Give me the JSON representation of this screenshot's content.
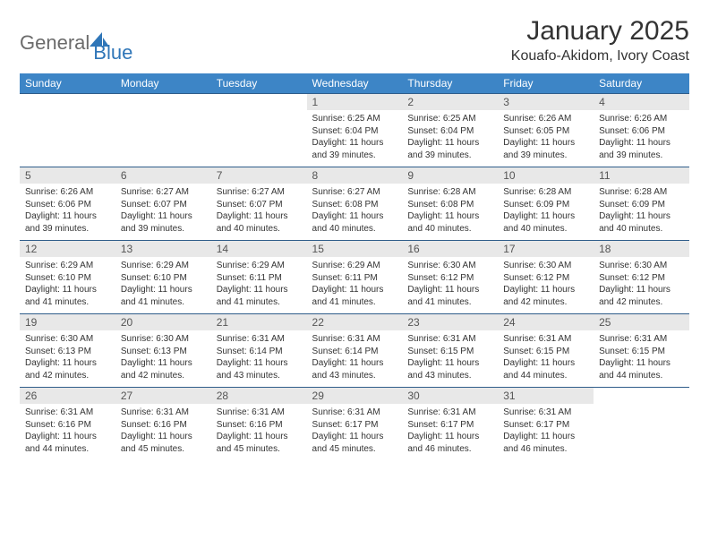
{
  "logo": {
    "word1": "General",
    "word2": "Blue"
  },
  "title": "January 2025",
  "subtitle": "Kouafo-Akidom, Ivory Coast",
  "colors": {
    "header_bg": "#3d85c6",
    "header_text": "#ffffff",
    "daynum_bg": "#e8e8e8",
    "row_border": "#2f5d8a",
    "logo_gray": "#6b6b6b",
    "logo_blue": "#2f76b8",
    "page_bg": "#ffffff",
    "body_text": "#333333"
  },
  "weekdays": [
    "Sunday",
    "Monday",
    "Tuesday",
    "Wednesday",
    "Thursday",
    "Friday",
    "Saturday"
  ],
  "weeks": [
    [
      {
        "n": "",
        "sr": "",
        "ss": "",
        "dl": ""
      },
      {
        "n": "",
        "sr": "",
        "ss": "",
        "dl": ""
      },
      {
        "n": "",
        "sr": "",
        "ss": "",
        "dl": ""
      },
      {
        "n": "1",
        "sr": "Sunrise: 6:25 AM",
        "ss": "Sunset: 6:04 PM",
        "dl": "Daylight: 11 hours and 39 minutes."
      },
      {
        "n": "2",
        "sr": "Sunrise: 6:25 AM",
        "ss": "Sunset: 6:04 PM",
        "dl": "Daylight: 11 hours and 39 minutes."
      },
      {
        "n": "3",
        "sr": "Sunrise: 6:26 AM",
        "ss": "Sunset: 6:05 PM",
        "dl": "Daylight: 11 hours and 39 minutes."
      },
      {
        "n": "4",
        "sr": "Sunrise: 6:26 AM",
        "ss": "Sunset: 6:06 PM",
        "dl": "Daylight: 11 hours and 39 minutes."
      }
    ],
    [
      {
        "n": "5",
        "sr": "Sunrise: 6:26 AM",
        "ss": "Sunset: 6:06 PM",
        "dl": "Daylight: 11 hours and 39 minutes."
      },
      {
        "n": "6",
        "sr": "Sunrise: 6:27 AM",
        "ss": "Sunset: 6:07 PM",
        "dl": "Daylight: 11 hours and 39 minutes."
      },
      {
        "n": "7",
        "sr": "Sunrise: 6:27 AM",
        "ss": "Sunset: 6:07 PM",
        "dl": "Daylight: 11 hours and 40 minutes."
      },
      {
        "n": "8",
        "sr": "Sunrise: 6:27 AM",
        "ss": "Sunset: 6:08 PM",
        "dl": "Daylight: 11 hours and 40 minutes."
      },
      {
        "n": "9",
        "sr": "Sunrise: 6:28 AM",
        "ss": "Sunset: 6:08 PM",
        "dl": "Daylight: 11 hours and 40 minutes."
      },
      {
        "n": "10",
        "sr": "Sunrise: 6:28 AM",
        "ss": "Sunset: 6:09 PM",
        "dl": "Daylight: 11 hours and 40 minutes."
      },
      {
        "n": "11",
        "sr": "Sunrise: 6:28 AM",
        "ss": "Sunset: 6:09 PM",
        "dl": "Daylight: 11 hours and 40 minutes."
      }
    ],
    [
      {
        "n": "12",
        "sr": "Sunrise: 6:29 AM",
        "ss": "Sunset: 6:10 PM",
        "dl": "Daylight: 11 hours and 41 minutes."
      },
      {
        "n": "13",
        "sr": "Sunrise: 6:29 AM",
        "ss": "Sunset: 6:10 PM",
        "dl": "Daylight: 11 hours and 41 minutes."
      },
      {
        "n": "14",
        "sr": "Sunrise: 6:29 AM",
        "ss": "Sunset: 6:11 PM",
        "dl": "Daylight: 11 hours and 41 minutes."
      },
      {
        "n": "15",
        "sr": "Sunrise: 6:29 AM",
        "ss": "Sunset: 6:11 PM",
        "dl": "Daylight: 11 hours and 41 minutes."
      },
      {
        "n": "16",
        "sr": "Sunrise: 6:30 AM",
        "ss": "Sunset: 6:12 PM",
        "dl": "Daylight: 11 hours and 41 minutes."
      },
      {
        "n": "17",
        "sr": "Sunrise: 6:30 AM",
        "ss": "Sunset: 6:12 PM",
        "dl": "Daylight: 11 hours and 42 minutes."
      },
      {
        "n": "18",
        "sr": "Sunrise: 6:30 AM",
        "ss": "Sunset: 6:12 PM",
        "dl": "Daylight: 11 hours and 42 minutes."
      }
    ],
    [
      {
        "n": "19",
        "sr": "Sunrise: 6:30 AM",
        "ss": "Sunset: 6:13 PM",
        "dl": "Daylight: 11 hours and 42 minutes."
      },
      {
        "n": "20",
        "sr": "Sunrise: 6:30 AM",
        "ss": "Sunset: 6:13 PM",
        "dl": "Daylight: 11 hours and 42 minutes."
      },
      {
        "n": "21",
        "sr": "Sunrise: 6:31 AM",
        "ss": "Sunset: 6:14 PM",
        "dl": "Daylight: 11 hours and 43 minutes."
      },
      {
        "n": "22",
        "sr": "Sunrise: 6:31 AM",
        "ss": "Sunset: 6:14 PM",
        "dl": "Daylight: 11 hours and 43 minutes."
      },
      {
        "n": "23",
        "sr": "Sunrise: 6:31 AM",
        "ss": "Sunset: 6:15 PM",
        "dl": "Daylight: 11 hours and 43 minutes."
      },
      {
        "n": "24",
        "sr": "Sunrise: 6:31 AM",
        "ss": "Sunset: 6:15 PM",
        "dl": "Daylight: 11 hours and 44 minutes."
      },
      {
        "n": "25",
        "sr": "Sunrise: 6:31 AM",
        "ss": "Sunset: 6:15 PM",
        "dl": "Daylight: 11 hours and 44 minutes."
      }
    ],
    [
      {
        "n": "26",
        "sr": "Sunrise: 6:31 AM",
        "ss": "Sunset: 6:16 PM",
        "dl": "Daylight: 11 hours and 44 minutes."
      },
      {
        "n": "27",
        "sr": "Sunrise: 6:31 AM",
        "ss": "Sunset: 6:16 PM",
        "dl": "Daylight: 11 hours and 45 minutes."
      },
      {
        "n": "28",
        "sr": "Sunrise: 6:31 AM",
        "ss": "Sunset: 6:16 PM",
        "dl": "Daylight: 11 hours and 45 minutes."
      },
      {
        "n": "29",
        "sr": "Sunrise: 6:31 AM",
        "ss": "Sunset: 6:17 PM",
        "dl": "Daylight: 11 hours and 45 minutes."
      },
      {
        "n": "30",
        "sr": "Sunrise: 6:31 AM",
        "ss": "Sunset: 6:17 PM",
        "dl": "Daylight: 11 hours and 46 minutes."
      },
      {
        "n": "31",
        "sr": "Sunrise: 6:31 AM",
        "ss": "Sunset: 6:17 PM",
        "dl": "Daylight: 11 hours and 46 minutes."
      },
      {
        "n": "",
        "sr": "",
        "ss": "",
        "dl": ""
      }
    ]
  ]
}
